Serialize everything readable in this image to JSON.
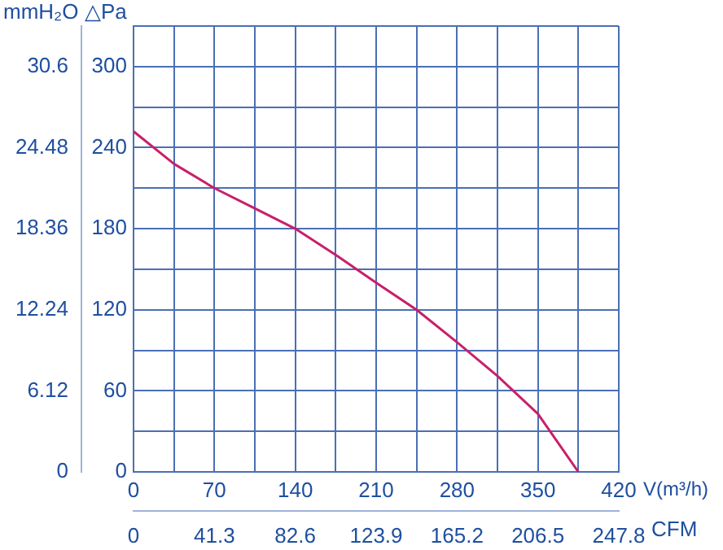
{
  "chart_data": {
    "type": "line",
    "xlabel": "V(m³/h)",
    "ylabel": "△Pa",
    "y2label": "mmH₂O",
    "x2label": "CFM",
    "series": [
      {
        "color": "#c8206a",
        "x": [
          0,
          35,
          70,
          105,
          140,
          176,
          210,
          245,
          280,
          315,
          350,
          385
        ],
        "values": [
          252,
          228,
          210,
          195,
          180,
          160,
          140,
          120,
          96,
          71,
          43,
          0
        ]
      }
    ],
    "xlim": [
      0,
      420
    ],
    "xticks": [
      0,
      {
        "value": 35,
        "label": null
      },
      70,
      {
        "value": 105,
        "label": null
      },
      140,
      {
        "value": 175,
        "label": null
      },
      210,
      {
        "value": 245,
        "label": null
      },
      280,
      {
        "value": 315,
        "label": null
      },
      350,
      {
        "value": 385,
        "label": null
      },
      420
    ],
    "ylim": [
      0,
      330
    ],
    "yticks": [
      0,
      {
        "value": 30,
        "label": null
      },
      60,
      {
        "value": 90,
        "label": null
      },
      120,
      {
        "value": 150,
        "label": null
      },
      180,
      {
        "value": 210,
        "label": null
      },
      240,
      {
        "value": 270,
        "label": null
      },
      300,
      {
        "value": 330,
        "label": null
      }
    ],
    "y2lim": [
      0,
      33.66
    ],
    "y2ticks": [
      0,
      6.12,
      12.24,
      18.36,
      24.48,
      30.6
    ],
    "x2lim": [
      0,
      247.8
    ],
    "x2ticks": [
      0,
      41.3,
      82.6,
      123.9,
      165.2,
      206.5,
      247.8
    ],
    "grid": true,
    "marker": "none",
    "line_style": "solid"
  }
}
